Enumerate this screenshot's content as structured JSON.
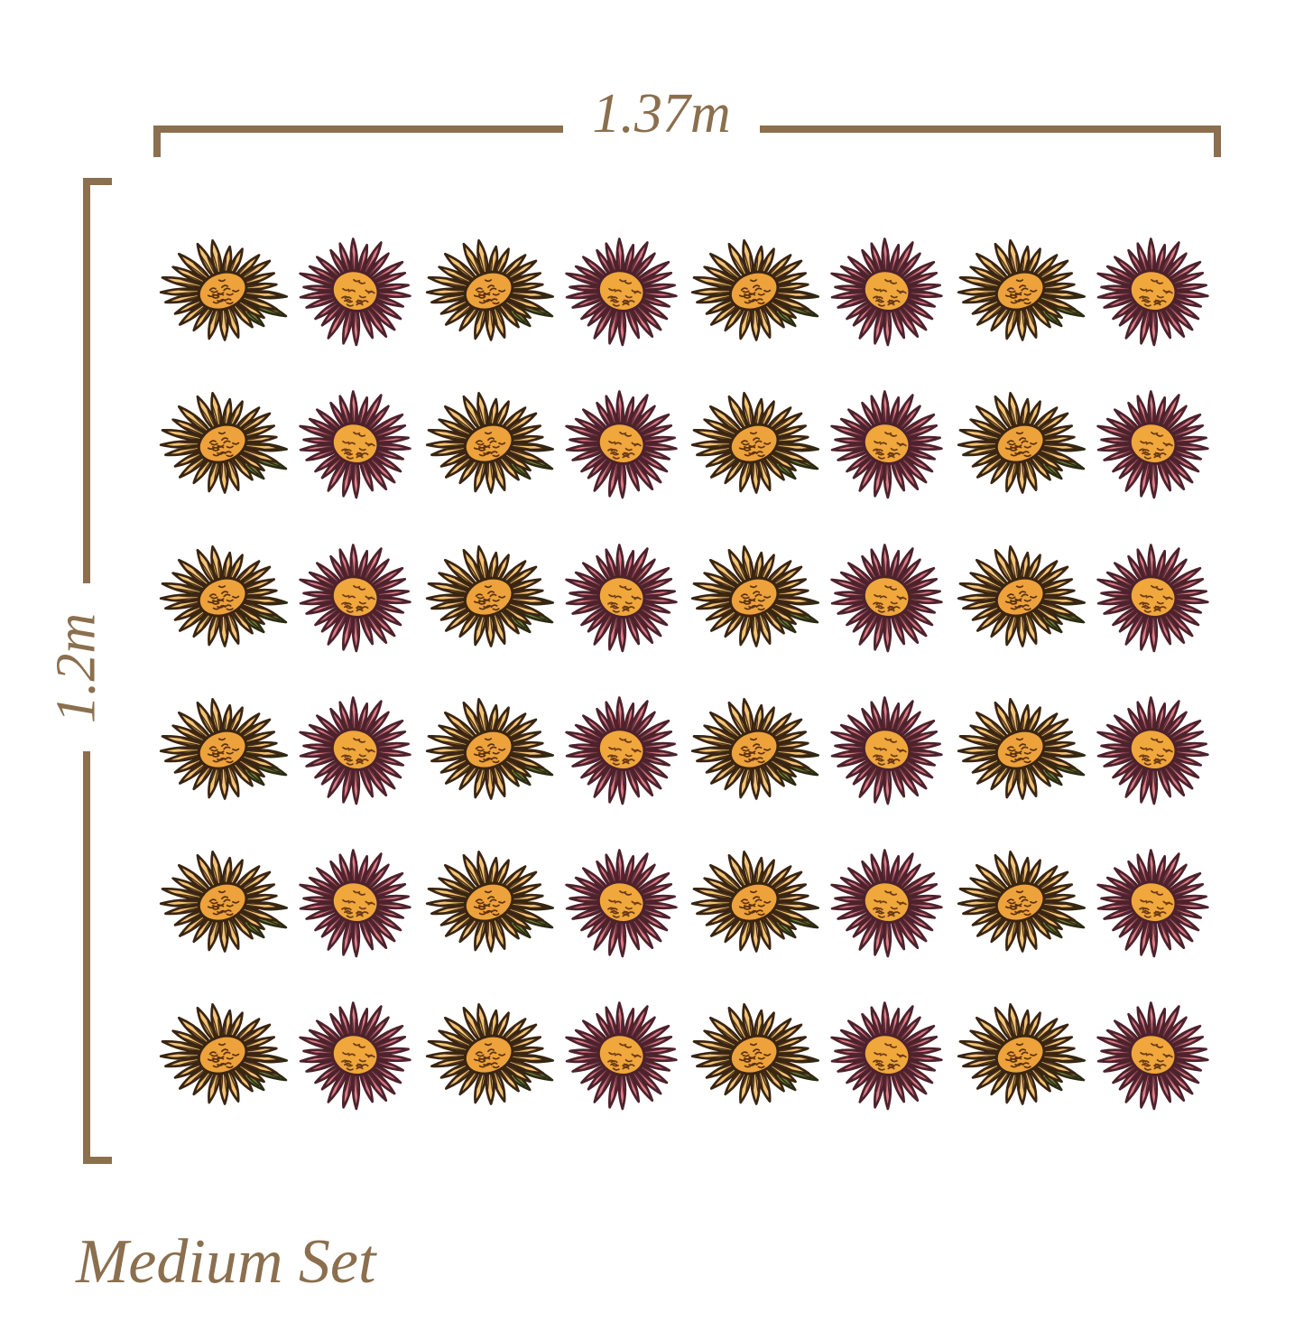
{
  "labels": {
    "width_dimension": "1.37m",
    "height_dimension": "1.2m",
    "set_name": "Medium Set"
  },
  "dimension_style": {
    "color": "#8b6f4e"
  },
  "background": "#ffffff",
  "grid": {
    "rows": 6,
    "columns": 8,
    "total_stickers": 48,
    "pattern_per_row": [
      "yellow-daisy",
      "pink-daisy",
      "yellow-daisy",
      "pink-daisy",
      "yellow-daisy",
      "pink-daisy",
      "yellow-daisy",
      "pink-daisy"
    ]
  },
  "flowers": {
    "yellow-daisy": {
      "petal": "#f3c375",
      "outline": "#3a2512",
      "center": "#eda23c",
      "center_marks": "#5c3110",
      "leaf": "#6e7b3d",
      "leaf_outline": "#2c2a12",
      "has_leaves": true
    },
    "pink-daisy": {
      "petal": "#dc7b86",
      "outline": "#4d222c",
      "center": "#f0a73c",
      "center_marks": "#6b3a17",
      "has_leaves": false
    }
  }
}
